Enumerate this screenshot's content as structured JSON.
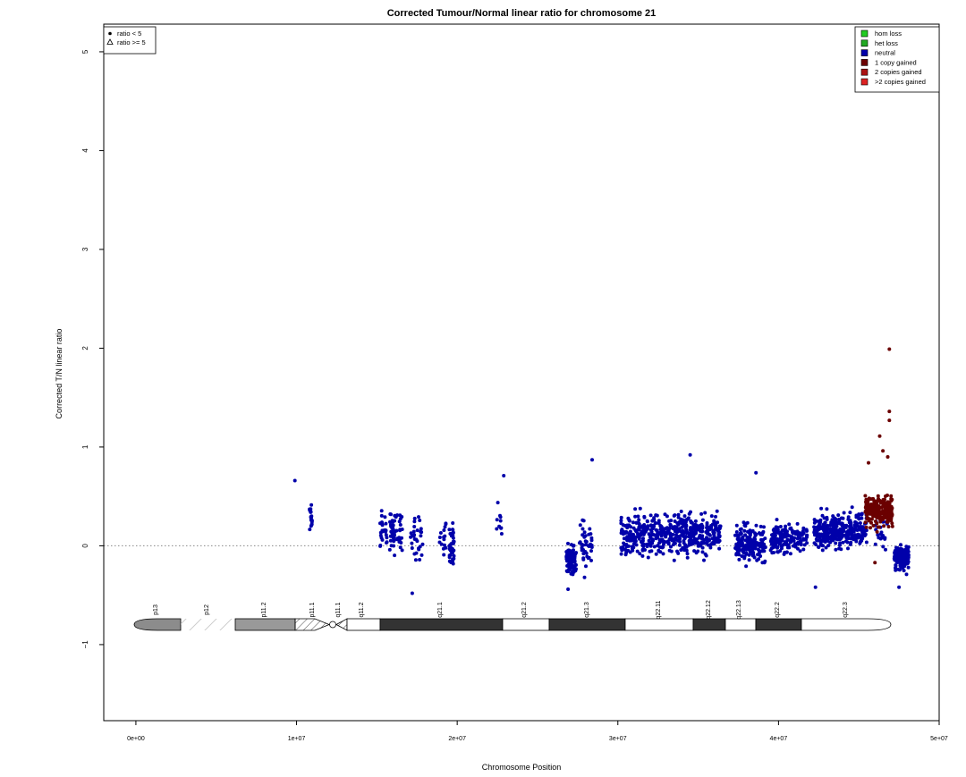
{
  "chart_data": {
    "type": "scatter",
    "title": "Corrected Tumour/Normal linear ratio for chromosome  21",
    "xlabel": "Chromosome Position",
    "ylabel": "Corrected T/N linear ratio",
    "xlim": [
      -2000000,
      50000000
    ],
    "ylim": [
      -1.77,
      5.28
    ],
    "x_ticks": [
      0,
      10000000,
      20000000,
      30000000,
      40000000,
      50000000
    ],
    "x_tick_labels": [
      "0e+00",
      "1e+07",
      "2e+07",
      "3e+07",
      "4e+07",
      "5e+07"
    ],
    "y_ticks": [
      -1,
      0,
      1,
      2,
      3,
      4,
      5
    ],
    "y_tick_labels": [
      "−1",
      "0",
      "1",
      "2",
      "3",
      "4",
      "5"
    ],
    "reference_line": {
      "y": 0,
      "style": "dotted",
      "color": "#888888"
    },
    "shape_legend": {
      "placement": "top-left",
      "entries": [
        {
          "symbol": "dot",
          "label": "ratio < 5"
        },
        {
          "symbol": "triangle",
          "label": "ratio >= 5"
        }
      ]
    },
    "color_legend": {
      "placement": "top-right",
      "entries": [
        {
          "label": "hom loss",
          "color": "#22cc22"
        },
        {
          "label": "het loss",
          "color": "#22aa22"
        },
        {
          "label": "neutral",
          "color": "#0000aa"
        },
        {
          "label": "1 copy gained",
          "color": "#6b0000"
        },
        {
          "label": "2 copies gained",
          "color": "#aa1111"
        },
        {
          "label": ">2 copies gained",
          "color": "#dd2222"
        }
      ]
    },
    "series": [
      {
        "name": "neutral",
        "color": "#0000aa",
        "clusters": [
          {
            "x": [
              9900000,
              9900000
            ],
            "y_center": 0.66,
            "y_spread": 0.0,
            "n": 1
          },
          {
            "x": [
              10800000,
              11000000
            ],
            "y_center": 0.3,
            "y_spread": 0.35,
            "n": 18
          },
          {
            "x": [
              15200000,
              16600000
            ],
            "y_center": 0.15,
            "y_spread": 0.38,
            "n": 75
          },
          {
            "x": [
              17100000,
              17900000
            ],
            "y_center": 0.05,
            "y_spread": 0.45,
            "n": 30
          },
          {
            "x": [
              18900000,
              19300000
            ],
            "y_center": 0.1,
            "y_spread": 0.3,
            "n": 15
          },
          {
            "x": [
              19500000,
              19800000
            ],
            "y_center": 0.05,
            "y_spread": 0.45,
            "n": 40
          },
          {
            "x": [
              22400000,
              22800000
            ],
            "y_center": 0.25,
            "y_spread": 0.3,
            "n": 10
          },
          {
            "x": [
              26800000,
              27400000
            ],
            "y_center": -0.15,
            "y_spread": 0.3,
            "n": 110
          },
          {
            "x": [
              27600000,
              28400000
            ],
            "y_center": 0.0,
            "y_spread": 0.45,
            "n": 40
          },
          {
            "x": [
              30200000,
              36400000
            ],
            "y_center": 0.12,
            "y_spread": 0.38,
            "n": 520
          },
          {
            "x": [
              37300000,
              39200000
            ],
            "y_center": 0.03,
            "y_spread": 0.35,
            "n": 180
          },
          {
            "x": [
              39500000,
              41800000
            ],
            "y_center": 0.08,
            "y_spread": 0.3,
            "n": 160
          },
          {
            "x": [
              42200000,
              45500000
            ],
            "y_center": 0.15,
            "y_spread": 0.32,
            "n": 330
          },
          {
            "x": [
              46000000,
              46800000
            ],
            "y_center": 0.1,
            "y_spread": 0.3,
            "n": 20
          },
          {
            "x": [
              47200000,
              48100000
            ],
            "y_center": -0.12,
            "y_spread": 0.22,
            "n": 190
          }
        ],
        "points": [
          [
            34500000,
            0.92
          ],
          [
            38600000,
            0.74
          ],
          [
            28400000,
            0.87
          ],
          [
            22900000,
            0.71
          ],
          [
            17200000,
            -0.48
          ],
          [
            42300000,
            -0.42
          ],
          [
            26900000,
            -0.44
          ],
          [
            47500000,
            -0.42
          ]
        ]
      },
      {
        "name": "1 copy gained",
        "color": "#6b0000",
        "clusters": [
          {
            "x": [
              45400000,
              47100000
            ],
            "y_center": 0.35,
            "y_spread": 0.3,
            "n": 230
          }
        ],
        "points": [
          [
            46300000,
            1.11
          ],
          [
            46900000,
            1.27
          ],
          [
            46900000,
            1.36
          ],
          [
            46900000,
            1.99
          ],
          [
            46500000,
            0.96
          ],
          [
            45600000,
            0.84
          ],
          [
            46800000,
            0.9
          ],
          [
            46000000,
            -0.17
          ]
        ]
      }
    ],
    "ideogram": {
      "band_labels": [
        "p13",
        "p12",
        "p11.2",
        "p11.1",
        "q11.1",
        "q11.2",
        "q21.1",
        "q21.2",
        "q21.3",
        "q22.11",
        "q22.12",
        "q22.13",
        "q22.2",
        "q22.3"
      ]
    }
  }
}
